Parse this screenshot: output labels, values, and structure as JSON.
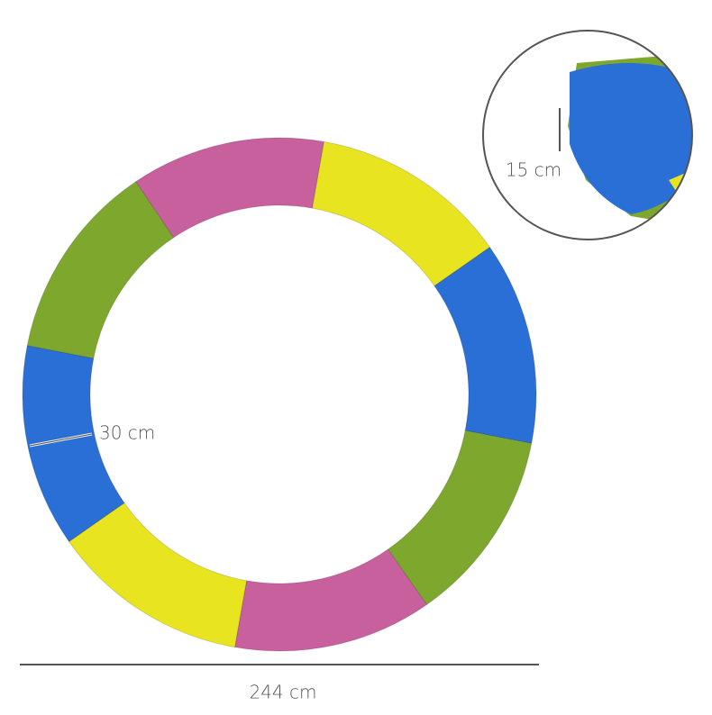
{
  "dimensions": {
    "thickness": "15 cm",
    "width": "30 cm",
    "diameter": "244 cm"
  }
}
